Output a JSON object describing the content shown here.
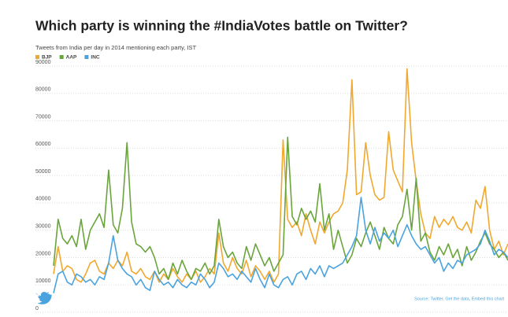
{
  "chart_data": {
    "type": "line",
    "title": "Which party is winning the #IndiaVotes battle on Twitter?",
    "subtitle": "Tweets from India per day in 2014 mentioning each party, IST",
    "source": "Source: Twitter, Get the data, Embed this chart",
    "ylim": [
      0,
      90000
    ],
    "yticks": [
      0,
      10000,
      20000,
      30000,
      40000,
      50000,
      60000,
      70000,
      80000,
      90000
    ],
    "grid": true,
    "legend": "top-left",
    "series": [
      {
        "name": "BJP",
        "color": "#f0a830",
        "values": [
          14000,
          24000,
          15000,
          17000,
          16000,
          12000,
          11000,
          14000,
          18000,
          19000,
          15000,
          14000,
          18000,
          16000,
          19000,
          17000,
          22000,
          15000,
          14000,
          16000,
          13000,
          12000,
          15000,
          11000,
          14000,
          12000,
          16000,
          13000,
          11000,
          14000,
          12000,
          15000,
          11000,
          13000,
          16000,
          14000,
          29000,
          18000,
          15000,
          20000,
          16000,
          14000,
          19000,
          13000,
          17000,
          15000,
          12000,
          15000,
          11000,
          14000,
          63000,
          34000,
          31000,
          33000,
          28000,
          36000,
          30000,
          25000,
          33000,
          29000,
          33000,
          36000,
          37000,
          40000,
          52000,
          85000,
          43000,
          44000,
          62000,
          50000,
          43000,
          41000,
          42000,
          66000,
          52000,
          48000,
          44000,
          89000,
          62000,
          48000,
          36000,
          29000,
          27000,
          35000,
          31000,
          34000,
          32000,
          35000,
          31000,
          30000,
          33000,
          29000,
          41000,
          38000,
          46000,
          30000,
          23000,
          26000,
          21000,
          25000
        ]
      },
      {
        "name": "AAP",
        "color": "#6aa43c",
        "values": [
          17000,
          34000,
          27000,
          25000,
          28000,
          24000,
          34000,
          23000,
          30000,
          33000,
          36000,
          31000,
          52000,
          32000,
          29000,
          38000,
          62000,
          33000,
          25000,
          24000,
          22000,
          24000,
          20000,
          14000,
          16000,
          12000,
          18000,
          14000,
          19000,
          15000,
          12000,
          16000,
          15000,
          18000,
          14000,
          17000,
          34000,
          24000,
          20000,
          22000,
          18000,
          16000,
          24000,
          19000,
          25000,
          21000,
          17000,
          20000,
          15000,
          18000,
          21000,
          64000,
          35000,
          32000,
          38000,
          34000,
          37000,
          33000,
          47000,
          30000,
          36000,
          23000,
          30000,
          24000,
          18000,
          21000,
          27000,
          24000,
          29000,
          33000,
          28000,
          23000,
          31000,
          27000,
          25000,
          32000,
          35000,
          45000,
          30000,
          49000,
          26000,
          29000,
          22000,
          19000,
          24000,
          21000,
          25000,
          20000,
          23000,
          17000,
          24000,
          19000,
          22000,
          26000,
          29000,
          25000,
          23000,
          20000,
          22000,
          19000
        ]
      },
      {
        "name": "INC",
        "color": "#4aa3df",
        "values": [
          7000,
          14000,
          15000,
          11000,
          10000,
          14000,
          13000,
          11000,
          12000,
          10000,
          13000,
          12000,
          18000,
          28000,
          19000,
          16000,
          14000,
          13000,
          10000,
          12000,
          9000,
          8000,
          15000,
          12000,
          10000,
          11000,
          9000,
          12000,
          10000,
          9000,
          11000,
          10000,
          14000,
          12000,
          9000,
          11000,
          18000,
          16000,
          13000,
          14000,
          12000,
          15000,
          13000,
          11000,
          16000,
          12000,
          9000,
          14000,
          10000,
          9000,
          12000,
          13000,
          10000,
          14000,
          15000,
          12000,
          16000,
          14000,
          17000,
          13000,
          17000,
          16000,
          17000,
          18000,
          21000,
          24000,
          28000,
          42000,
          30000,
          25000,
          31000,
          26000,
          29000,
          27000,
          30000,
          24000,
          28000,
          32000,
          28000,
          25000,
          23000,
          24000,
          21000,
          18000,
          20000,
          15000,
          18000,
          16000,
          19000,
          18000,
          21000,
          22000,
          23000,
          25000,
          30000,
          26000,
          21000,
          23000,
          22000,
          20000
        ]
      }
    ]
  }
}
